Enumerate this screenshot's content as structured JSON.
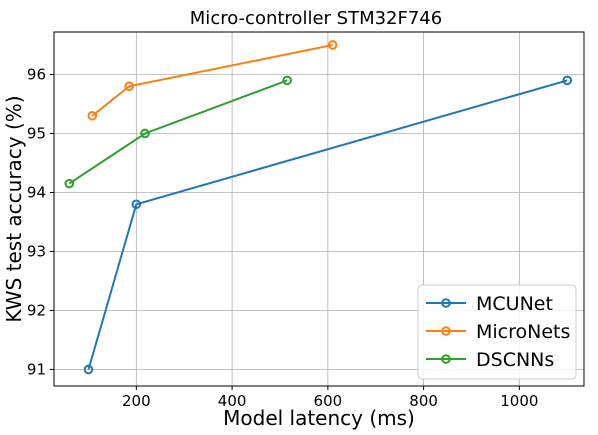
{
  "chart_data": {
    "type": "line",
    "title": "Micro-controller STM32F746",
    "xlabel": "Model latency (ms)",
    "ylabel": "KWS test accuracy (%)",
    "xlim": [
      28,
      1135
    ],
    "ylim": [
      90.72,
      96.72
    ],
    "x_ticks": [
      {
        "value": 200,
        "label": "200"
      },
      {
        "value": 400,
        "label": "400"
      },
      {
        "value": 600,
        "label": "600"
      },
      {
        "value": 800,
        "label": "800"
      },
      {
        "value": 1000,
        "label": "1000"
      }
    ],
    "y_ticks": [
      {
        "value": 91,
        "label": "91"
      },
      {
        "value": 92,
        "label": "92"
      },
      {
        "value": 93,
        "label": "93"
      },
      {
        "value": 94,
        "label": "94"
      },
      {
        "value": 95,
        "label": "95"
      },
      {
        "value": 96,
        "label": "96"
      }
    ],
    "grid": true,
    "legend_position": "bottom-right",
    "series": [
      {
        "name": "MCUNet",
        "color": "#1f77b4",
        "x": [
          100,
          200,
          1100
        ],
        "y": [
          91.0,
          93.8,
          95.9
        ]
      },
      {
        "name": "MicroNets",
        "color": "#ff7f0e",
        "x": [
          108,
          185,
          610
        ],
        "y": [
          95.3,
          95.8,
          96.5
        ]
      },
      {
        "name": "DSCNNs",
        "color": "#2ca02c",
        "x": [
          60,
          218,
          515
        ],
        "y": [
          94.15,
          95.0,
          95.9
        ]
      }
    ]
  }
}
